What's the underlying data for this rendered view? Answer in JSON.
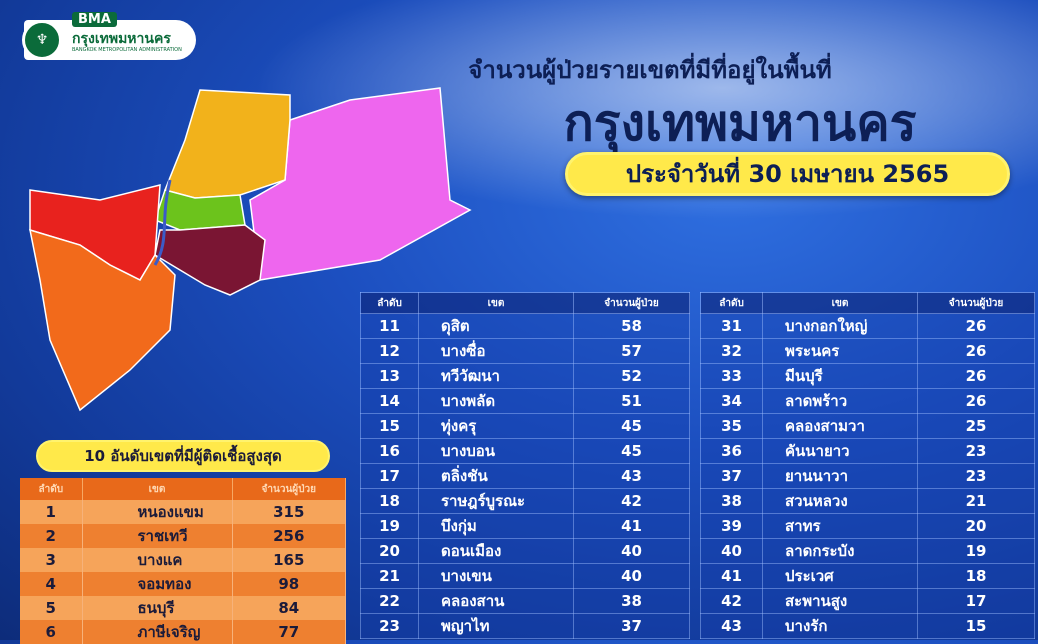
{
  "logo": {
    "abbr": "BMA",
    "name_th": "กรุงเทพมหานคร",
    "name_en": "BANGKOK METROPOLITAN ADMINISTRATION"
  },
  "header": {
    "line1": "จำนวนผู้ป่วยรายเขตที่มีที่อยู่ในพื้นที่",
    "line2": "กรุงเทพมหานคร",
    "date": "ประจำวันที่ 30 เมษายน 2565"
  },
  "map": {
    "colors": {
      "red": "#e8221e",
      "orange": "#f26a1b",
      "yellow": "#f2b21b",
      "green": "#6cc31c",
      "maroon": "#7a1533",
      "magenta": "#ee66ee"
    }
  },
  "top10": {
    "title": "10 อันดับเขตที่มีผู้ติดเชื้อสูงสุด",
    "headers": [
      "ลำดับ",
      "เขต",
      "จำนวนผู้ป่วย"
    ],
    "rows": [
      [
        "1",
        "หนองแขม",
        "315"
      ],
      [
        "2",
        "ราชเทวี",
        "256"
      ],
      [
        "3",
        "บางแค",
        "165"
      ],
      [
        "4",
        "จอมทอง",
        "98"
      ],
      [
        "5",
        "ธนบุรี",
        "84"
      ],
      [
        "6",
        "ภาษีเจริญ",
        "77"
      ]
    ]
  },
  "table2": {
    "headers": [
      "ลำดับ",
      "เขต",
      "จำนวนผู้ป่วย"
    ],
    "rows": [
      [
        "11",
        "ดุสิต",
        "58"
      ],
      [
        "12",
        "บางซื่อ",
        "57"
      ],
      [
        "13",
        "ทวีวัฒนา",
        "52"
      ],
      [
        "14",
        "บางพลัด",
        "51"
      ],
      [
        "15",
        "ทุ่งครุ",
        "45"
      ],
      [
        "16",
        "บางบอน",
        "45"
      ],
      [
        "17",
        "ตลิ่งชัน",
        "43"
      ],
      [
        "18",
        "ราษฎร์บูรณะ",
        "42"
      ],
      [
        "19",
        "บึงกุ่ม",
        "41"
      ],
      [
        "20",
        "ดอนเมือง",
        "40"
      ],
      [
        "21",
        "บางเขน",
        "40"
      ],
      [
        "22",
        "คลองสาน",
        "38"
      ],
      [
        "23",
        "พญาไท",
        "37"
      ]
    ]
  },
  "table3": {
    "headers": [
      "ลำดับ",
      "เขต",
      "จำนวนผู้ป่วย"
    ],
    "rows": [
      [
        "31",
        "บางกอกใหญ่",
        "26"
      ],
      [
        "32",
        "พระนคร",
        "26"
      ],
      [
        "33",
        "มีนบุรี",
        "26"
      ],
      [
        "34",
        "ลาดพร้าว",
        "26"
      ],
      [
        "35",
        "คลองสามวา",
        "25"
      ],
      [
        "36",
        "คันนายาว",
        "23"
      ],
      [
        "37",
        "ยานนาวา",
        "23"
      ],
      [
        "38",
        "สวนหลวง",
        "21"
      ],
      [
        "39",
        "สาทร",
        "20"
      ],
      [
        "40",
        "ลาดกระบัง",
        "19"
      ],
      [
        "41",
        "ประเวศ",
        "18"
      ],
      [
        "42",
        "สะพานสูง",
        "17"
      ],
      [
        "43",
        "บางรัก",
        "15"
      ]
    ]
  }
}
